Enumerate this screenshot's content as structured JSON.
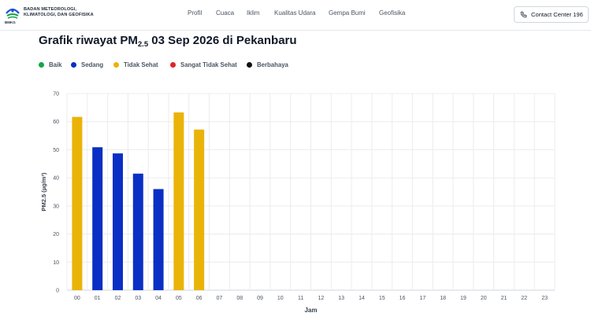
{
  "header": {
    "logo_caption": "BMKG",
    "org_name_lines": [
      "BADAN METEOROLOGI,",
      "KLIMATOLOGI, DAN GEOFISIKA"
    ],
    "nav": [
      "Profil",
      "Cuaca",
      "Iklim",
      "Kualitas Udara",
      "Gempa Bumi",
      "Geofisika"
    ],
    "contact_label": "Contact Center 196"
  },
  "title": {
    "prefix": "Grafik riwayat PM",
    "subscript": "2.5",
    "suffix": " 03 Sep 2026 di Pekanbaru"
  },
  "legend": [
    {
      "label": "Baik",
      "color": "#16a34a"
    },
    {
      "label": "Sedang",
      "color": "#0a2fc4"
    },
    {
      "label": "Tidak Sehat",
      "color": "#eab308"
    },
    {
      "label": "Sangat Tidak Sehat",
      "color": "#dc2626"
    },
    {
      "label": "Berbahaya",
      "color": "#111111"
    }
  ],
  "icons": {
    "logo": "bmkg-logo-icon",
    "contact": "phone-icon"
  },
  "chart_data": {
    "type": "bar",
    "categories": [
      "00",
      "01",
      "02",
      "03",
      "04",
      "05",
      "06",
      "07",
      "08",
      "09",
      "10",
      "11",
      "12",
      "13",
      "14",
      "15",
      "16",
      "17",
      "18",
      "19",
      "20",
      "21",
      "22",
      "23"
    ],
    "values": [
      61.7,
      50.9,
      48.7,
      41.5,
      36.0,
      63.3,
      57.2,
      null,
      null,
      null,
      null,
      null,
      null,
      null,
      null,
      null,
      null,
      null,
      null,
      null,
      null,
      null,
      null,
      null
    ],
    "bar_colors": [
      "#eab308",
      "#0a2fc4",
      "#0a2fc4",
      "#0a2fc4",
      "#0a2fc4",
      "#eab308",
      "#eab308"
    ],
    "xlabel": "Jam",
    "ylabel": "PM2.5 (µg/m³)",
    "ylim": [
      0,
      70
    ],
    "yticks": [
      0,
      10,
      20,
      30,
      40,
      50,
      60,
      70
    ],
    "grid": true
  }
}
